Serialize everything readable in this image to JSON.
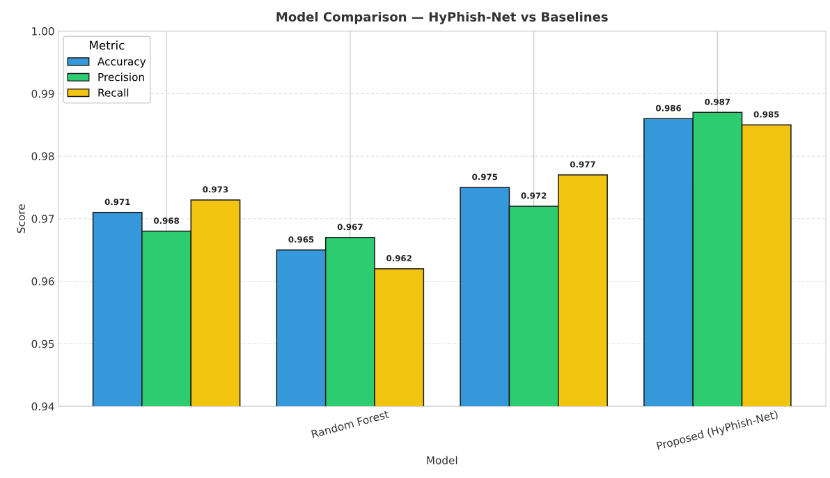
{
  "chart_data": {
    "type": "bar",
    "title": "Model Comparison — HyPhish-Net vs Baselines",
    "xlabel": "Model",
    "ylabel": "Score",
    "categories": [
      null,
      "Random Forest",
      null,
      "Proposed (HyPhish-Net)"
    ],
    "series": [
      {
        "name": "Accuracy",
        "color": "#3498db",
        "values": [
          0.971,
          0.965,
          0.975,
          0.986
        ]
      },
      {
        "name": "Precision",
        "color": "#2ecc71",
        "values": [
          0.968,
          0.967,
          0.972,
          0.987
        ]
      },
      {
        "name": "Recall",
        "color": "#f1c40f",
        "values": [
          0.973,
          0.962,
          0.977,
          0.985
        ]
      }
    ],
    "legend_title": "Metric",
    "legend": "top left",
    "ylim": [
      0.94,
      1.0
    ],
    "yticks": [
      {
        "value": 0.94,
        "label": "0.94"
      },
      {
        "value": 0.95,
        "label": "0.95"
      },
      {
        "value": 0.96,
        "label": "0.96"
      },
      {
        "value": 0.97,
        "label": "0.97"
      },
      {
        "value": 0.98,
        "label": "0.98"
      },
      {
        "value": 0.99,
        "label": "0.99"
      },
      {
        "value": 1.0,
        "label": "1.00"
      }
    ],
    "grid": true,
    "data_labels": true
  }
}
